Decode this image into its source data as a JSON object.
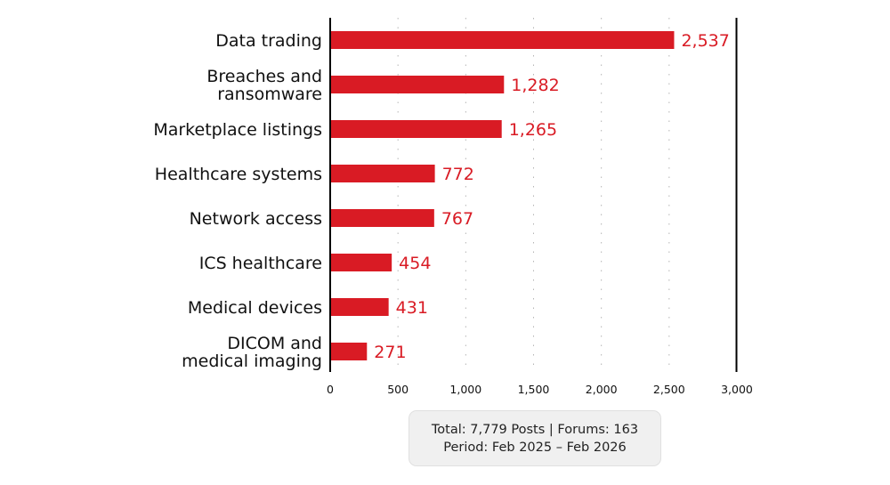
{
  "chart_data": {
    "type": "bar",
    "orientation": "horizontal",
    "categories": [
      [
        "Data trading"
      ],
      [
        "Breaches and",
        "ransomware"
      ],
      [
        "Marketplace listings"
      ],
      [
        "Healthcare systems"
      ],
      [
        "Network access"
      ],
      [
        "ICS healthcare"
      ],
      [
        "Medical devices"
      ],
      [
        "DICOM and",
        "medical imaging"
      ]
    ],
    "values": [
      2537,
      1282,
      1265,
      772,
      767,
      454,
      431,
      271
    ],
    "value_labels": [
      "2,537",
      "1,282",
      "1,265",
      "772",
      "767",
      "454",
      "431",
      "271"
    ],
    "xlim": [
      0,
      3000
    ],
    "xticks": [
      0,
      500,
      1000,
      1500,
      2000,
      2500,
      3000
    ],
    "xtick_labels": [
      "0",
      "500",
      "1,000",
      "1,500",
      "2,000",
      "2,500",
      "3,000"
    ],
    "title": "",
    "xlabel": "",
    "ylabel": "",
    "grid": "vertical dotted",
    "bar_color": "#d91b24",
    "label_color": "#d91b24"
  },
  "info": {
    "line1": "Total: 7,779 Posts | Forums: 163",
    "line2": "Period: Feb 2025 – Feb 2026"
  }
}
